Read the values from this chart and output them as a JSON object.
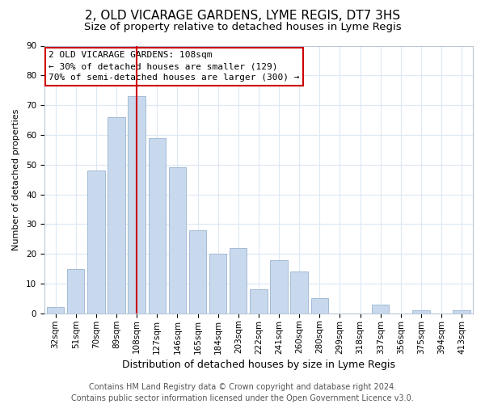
{
  "title": "2, OLD VICARAGE GARDENS, LYME REGIS, DT7 3HS",
  "subtitle": "Size of property relative to detached houses in Lyme Regis",
  "xlabel": "Distribution of detached houses by size in Lyme Regis",
  "ylabel": "Number of detached properties",
  "bar_labels": [
    "32sqm",
    "51sqm",
    "70sqm",
    "89sqm",
    "108sqm",
    "127sqm",
    "146sqm",
    "165sqm",
    "184sqm",
    "203sqm",
    "222sqm",
    "241sqm",
    "260sqm",
    "280sqm",
    "299sqm",
    "318sqm",
    "337sqm",
    "356sqm",
    "375sqm",
    "394sqm",
    "413sqm"
  ],
  "bar_values": [
    2,
    15,
    48,
    66,
    73,
    59,
    49,
    28,
    20,
    22,
    8,
    18,
    14,
    5,
    0,
    0,
    3,
    0,
    1,
    0,
    1
  ],
  "bar_color": "#c8d9ee",
  "bar_edge_color": "#9ab4d0",
  "vline_x_index": 4,
  "vline_color": "#cc0000",
  "ylim": [
    0,
    90
  ],
  "yticks": [
    0,
    10,
    20,
    30,
    40,
    50,
    60,
    70,
    80,
    90
  ],
  "annotation_line1": "2 OLD VICARAGE GARDENS: 108sqm",
  "annotation_line2": "← 30% of detached houses are smaller (129)",
  "annotation_line3": "70% of semi-detached houses are larger (300) →",
  "annotation_box_color": "#ffffff",
  "annotation_box_edge": "#cc0000",
  "footer_line1": "Contains HM Land Registry data © Crown copyright and database right 2024.",
  "footer_line2": "Contains public sector information licensed under the Open Government Licence v3.0.",
  "background_color": "#ffffff",
  "grid_color": "#dce8f4",
  "title_fontsize": 11,
  "subtitle_fontsize": 9.5,
  "xlabel_fontsize": 9,
  "ylabel_fontsize": 8,
  "tick_fontsize": 7.5,
  "annotation_fontsize": 8,
  "footer_fontsize": 7
}
